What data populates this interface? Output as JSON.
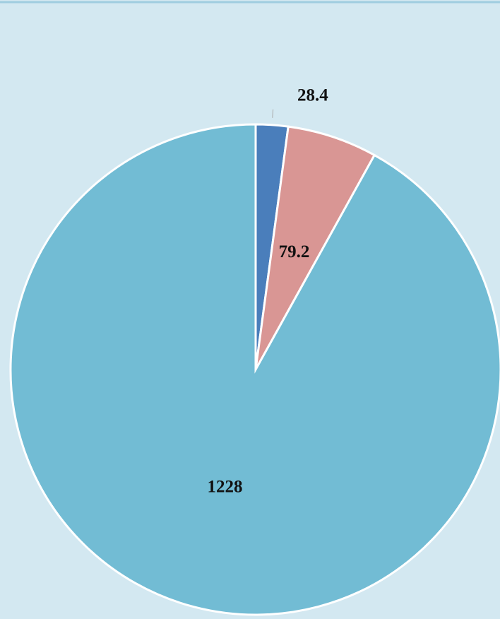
{
  "chart_data": {
    "type": "pie",
    "values": [
      28.4,
      79.2,
      1228
    ],
    "colors": [
      "#4a7ebb",
      "#d99694",
      "#72bcd4"
    ]
  }
}
